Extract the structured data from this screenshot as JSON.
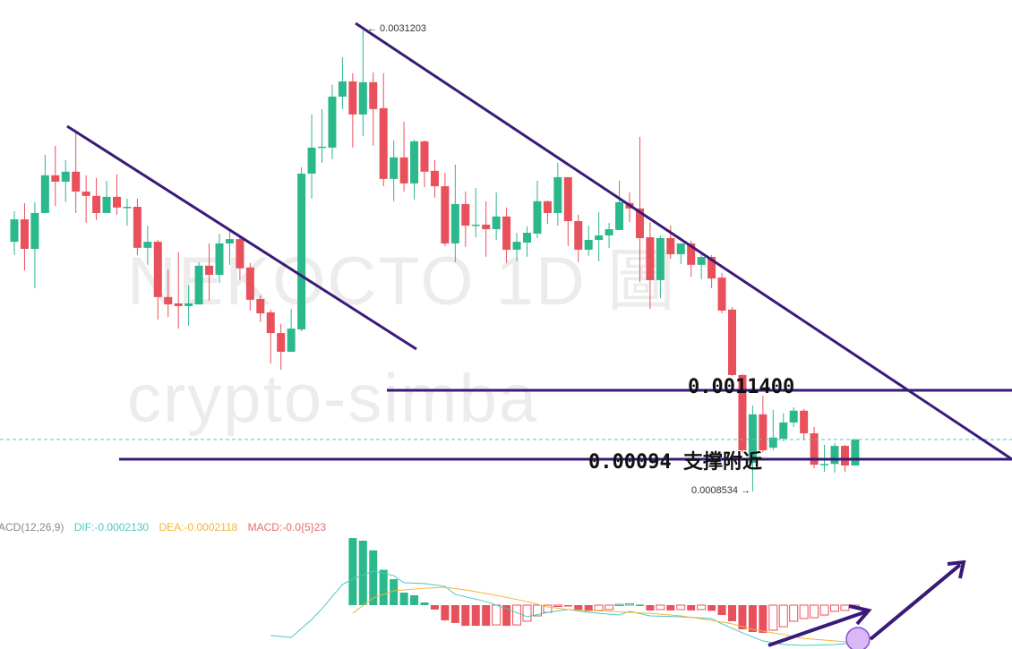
{
  "watermarks": {
    "symbol": "NEKOCTO  1D  圖",
    "author": "crypto-simba"
  },
  "colors": {
    "up": "#2bb88c",
    "down": "#e8505b",
    "trendline": "#3a1a78",
    "dif": "#4cc8c0",
    "dea": "#f2b53a",
    "macd": "#e86a6a",
    "last_price": "#4cc8c0",
    "marker_fill": "#d9b8f7",
    "marker_stroke": "#8a4fd1"
  },
  "annotations": {
    "resistance_label": "0.0011400",
    "support_label": "0.00094 支撑附近",
    "high_label": "← 0.0031203",
    "low_label": "0.0008534 →"
  },
  "macd_legend": {
    "name": "ACD(12,26,9)",
    "dif": "DIF:-0.0002130",
    "dea": "DEA:-0.0002118",
    "macd": "MACD:-0.0{5}23"
  },
  "chart_data": [
    {
      "type": "candlestick",
      "y_scale": "log",
      "grid": false,
      "fields": [
        "open",
        "high",
        "low",
        "close"
      ],
      "candles": [
        [
          0.001722,
          0.001877,
          0.001659,
          0.001834
        ],
        [
          0.001834,
          0.00192,
          0.001589,
          0.001688
        ],
        [
          0.001688,
          0.001925,
          0.001511,
          0.001867
        ],
        [
          0.001867,
          0.002199,
          0.001867,
          0.002076
        ],
        [
          0.002076,
          0.002255,
          0.001905,
          0.002039
        ],
        [
          0.002039,
          0.002166,
          0.001925,
          0.002097
        ],
        [
          0.002097,
          0.002336,
          0.001867,
          0.001983
        ],
        [
          0.001983,
          0.002076,
          0.001816,
          0.001959
        ],
        [
          0.001959,
          0.00206,
          0.00183,
          0.001867
        ],
        [
          0.001867,
          0.002045,
          0.001867,
          0.001954
        ],
        [
          0.001954,
          0.002081,
          0.001858,
          0.001896
        ],
        [
          0.001896,
          0.001944,
          0.001802,
          0.0019
        ],
        [
          0.0019,
          0.001944,
          0.001659,
          0.001693
        ],
        [
          0.001693,
          0.001802,
          0.001614,
          0.001722
        ],
        [
          0.001722,
          0.001731,
          0.001384,
          0.001474
        ],
        [
          0.001474,
          0.001593,
          0.001394,
          0.001444
        ],
        [
          0.001448,
          0.001672,
          0.001349,
          0.001437
        ],
        [
          0.001437,
          0.001523,
          0.00136,
          0.001448
        ],
        [
          0.001444,
          0.001626,
          0.001444,
          0.00161
        ],
        [
          0.00161,
          0.001714,
          0.001459,
          0.001569
        ],
        [
          0.001569,
          0.001762,
          0.001534,
          0.001714
        ],
        [
          0.001714,
          0.00178,
          0.001614,
          0.001735
        ],
        [
          0.001735,
          0.001753,
          0.001549,
          0.001598
        ],
        [
          0.001602,
          0.001622,
          0.001419,
          0.001463
        ],
        [
          0.001466,
          0.001481,
          0.001374,
          0.001408
        ],
        [
          0.001412,
          0.001423,
          0.001223,
          0.001332
        ],
        [
          0.001332,
          0.001367,
          0.001202,
          0.001264
        ],
        [
          0.001264,
          0.001426,
          0.001264,
          0.001349
        ],
        [
          0.001346,
          0.002123,
          0.001339,
          0.002086
        ],
        [
          0.002086,
          0.002463,
          0.001944,
          0.002244
        ],
        [
          0.002244,
          0.002501,
          0.00215,
          0.00225
        ],
        [
          0.002244,
          0.002677,
          0.002172,
          0.00259
        ],
        [
          0.00259,
          0.002893,
          0.002501,
          0.002703
        ],
        [
          0.002703,
          0.002766,
          0.002244,
          0.002463
        ],
        [
          0.002463,
          0.0031203,
          0.002318,
          0.002697
        ],
        [
          0.002697,
          0.002773,
          0.002255,
          0.002501
        ],
        [
          0.002507,
          0.002766,
          0.002013,
          0.002055
        ],
        [
          0.002055,
          0.00229,
          0.00193,
          0.002183
        ],
        [
          0.002183,
          0.002414,
          0.001983,
          0.002029
        ],
        [
          0.002029,
          0.002295,
          0.001939,
          0.002284
        ],
        [
          0.002284,
          0.00229,
          0.002008,
          0.002097
        ],
        [
          0.002102,
          0.002166,
          0.001949,
          0.002013
        ],
        [
          0.002013,
          0.002091,
          0.001701,
          0.001714
        ],
        [
          0.001714,
          0.002139,
          0.001626,
          0.001915
        ],
        [
          0.001915,
          0.001983,
          0.001697,
          0.001802
        ],
        [
          0.001802,
          0.002003,
          0.001744,
          0.001807
        ],
        [
          0.001807,
          0.00193,
          0.001651,
          0.001784
        ],
        [
          0.001784,
          0.001978,
          0.001731,
          0.001849
        ],
        [
          0.001849,
          0.001896,
          0.001622,
          0.001684
        ],
        [
          0.001684,
          0.001766,
          0.00163,
          0.001722
        ],
        [
          0.001718,
          0.001798,
          0.001651,
          0.001766
        ],
        [
          0.001762,
          0.002045,
          0.00174,
          0.00193
        ],
        [
          0.00193,
          0.001934,
          0.001811,
          0.001867
        ],
        [
          0.001867,
          0.00215,
          0.001802,
          0.002065
        ],
        [
          0.002065,
          0.002065,
          0.001701,
          0.001825
        ],
        [
          0.001825,
          0.001858,
          0.001626,
          0.001684
        ],
        [
          0.001684,
          0.001802,
          0.001655,
          0.001731
        ],
        [
          0.001731,
          0.001872,
          0.00163,
          0.001753
        ],
        [
          0.001753,
          0.001816,
          0.001693,
          0.001784
        ],
        [
          0.00178,
          0.002045,
          0.00178,
          0.001925
        ],
        [
          0.00192,
          0.001978,
          0.00182,
          0.001891
        ],
        [
          0.001891,
          0.002313,
          0.001538,
          0.00174
        ],
        [
          0.001744,
          0.00182,
          0.001426,
          0.001546
        ],
        [
          0.001546,
          0.001753,
          0.00147,
          0.00174
        ],
        [
          0.00174,
          0.001802,
          0.001642,
          0.001663
        ],
        [
          0.001663,
          0.001714,
          0.001618,
          0.001714
        ],
        [
          0.001714,
          0.001727,
          0.001561,
          0.001614
        ],
        [
          0.001614,
          0.001672,
          0.001549,
          0.00165
        ],
        [
          0.00165,
          0.001659,
          0.001511,
          0.001553
        ],
        [
          0.001557,
          0.001577,
          0.001408,
          0.001419
        ],
        [
          0.001423,
          0.001433,
          0.001181,
          0.001184
        ],
        [
          0.001184,
          0.001187,
          0.000953,
          0.000958
        ],
        [
          0.000925,
          0.001087,
          0.0008534,
          0.00106
        ],
        [
          0.00106,
          0.001117,
          0.000953,
          0.000958
        ],
        [
          0.000965,
          0.001073,
          0.000958,
          0.000993
        ],
        [
          0.00099,
          0.001063,
          0.000983,
          0.001036
        ],
        [
          0.001036,
          0.001081,
          0.001023,
          0.001071
        ],
        [
          0.001071,
          0.001076,
          0.000988,
          0.001005
        ],
        [
          0.001005,
          0.001023,
          0.000911,
          0.00092
        ],
        [
          0.00092,
          0.000973,
          0.000902,
          0.000922
        ],
        [
          0.000922,
          0.000978,
          0.0009,
          0.00097
        ],
        [
          0.00097,
          0.000973,
          0.000902,
          0.000918
        ],
        [
          0.000918,
          0.000988,
          0.000918,
          0.000988
        ]
      ],
      "high": 0.0031203,
      "low": 0.0008534,
      "levels": [
        0.00114,
        0.00094
      ]
    },
    {
      "type": "macd",
      "params": "12,26,9",
      "histogram_start_index": 33,
      "histogram": [
        0.00038,
        0.000365,
        0.00031,
        0.0002,
        0.000147,
        7.1e-05,
        5.6e-05,
        1.5e-05,
        -2.5e-05,
        -8.6e-05,
        -0.000101,
        -0.000117,
        -0.000117,
        -0.000117,
        -0.000112,
        -0.000117,
        -0.000112,
        -9.1e-05,
        -6.1e-05,
        -4.1e-05,
        -5e-06,
        -5e-06,
        -3e-05,
        -3.5e-05,
        -3e-05,
        -2.5e-05,
        5e-06,
        8e-06,
        3e-06,
        -3e-05,
        -2.5e-05,
        -3e-05,
        -2.5e-05,
        -3e-05,
        -2.5e-05,
        -3.2e-05,
        -5.6e-05,
        -9.1e-05,
        -0.000137,
        -0.000152,
        -0.000157,
        -0.000142,
        -0.000122,
        -9.1e-05,
        -7.6e-05,
        -7.1e-05,
        -5.6e-05,
        -3.5e-05,
        -3e-05,
        -2.3e-06
      ],
      "dif": [
        [
          25,
          -0.000172
        ],
        [
          27,
          -0.000183
        ],
        [
          29,
          -8.1e-05
        ],
        [
          30,
          -2e-05
        ],
        [
          32,
          0.000117
        ],
        [
          33,
          0.000147
        ],
        [
          35,
          0.000193
        ],
        [
          37,
          0.000167
        ],
        [
          38,
          0.000127
        ],
        [
          40,
          0.000122
        ],
        [
          42,
          0.000106
        ],
        [
          43,
          6.1e-05
        ],
        [
          46,
          2e-05
        ],
        [
          48,
          -2e-05
        ],
        [
          50,
          -6.6e-05
        ],
        [
          52,
          -4.1e-05
        ],
        [
          54,
          -2.5e-05
        ],
        [
          56,
          -4.1e-05
        ],
        [
          59,
          -5.6e-05
        ],
        [
          60,
          -3.5e-05
        ],
        [
          62,
          -6.1e-05
        ],
        [
          65,
          -6.6e-05
        ],
        [
          68,
          -7.6e-05
        ],
        [
          69,
          -0.000106
        ],
        [
          71,
          -0.000157
        ],
        [
          73,
          -0.000203
        ],
        [
          75,
          -0.000223
        ],
        [
          77,
          -0.000228
        ],
        [
          80,
          -0.000223
        ],
        [
          82,
          -0.000213
        ]
      ],
      "dea": [
        [
          33,
          -4.6e-05
        ],
        [
          35,
          4.1e-05
        ],
        [
          37,
          8.1e-05
        ],
        [
          40,
          9.6e-05
        ],
        [
          42,
          0.000101
        ],
        [
          44,
          8.6e-05
        ],
        [
          47,
          5.6e-05
        ],
        [
          50,
          2e-05
        ],
        [
          52,
          -1e-05
        ],
        [
          54,
          -2.5e-05
        ],
        [
          58,
          -3.5e-05
        ],
        [
          60,
          -4.1e-05
        ],
        [
          62,
          -4.6e-05
        ],
        [
          65,
          -6.1e-05
        ],
        [
          68,
          -8.6e-05
        ],
        [
          70,
          -0.000106
        ],
        [
          72,
          -0.000137
        ],
        [
          75,
          -0.000167
        ],
        [
          77,
          -0.000188
        ],
        [
          80,
          -0.000203
        ],
        [
          82,
          -0.000211
        ]
      ]
    }
  ]
}
